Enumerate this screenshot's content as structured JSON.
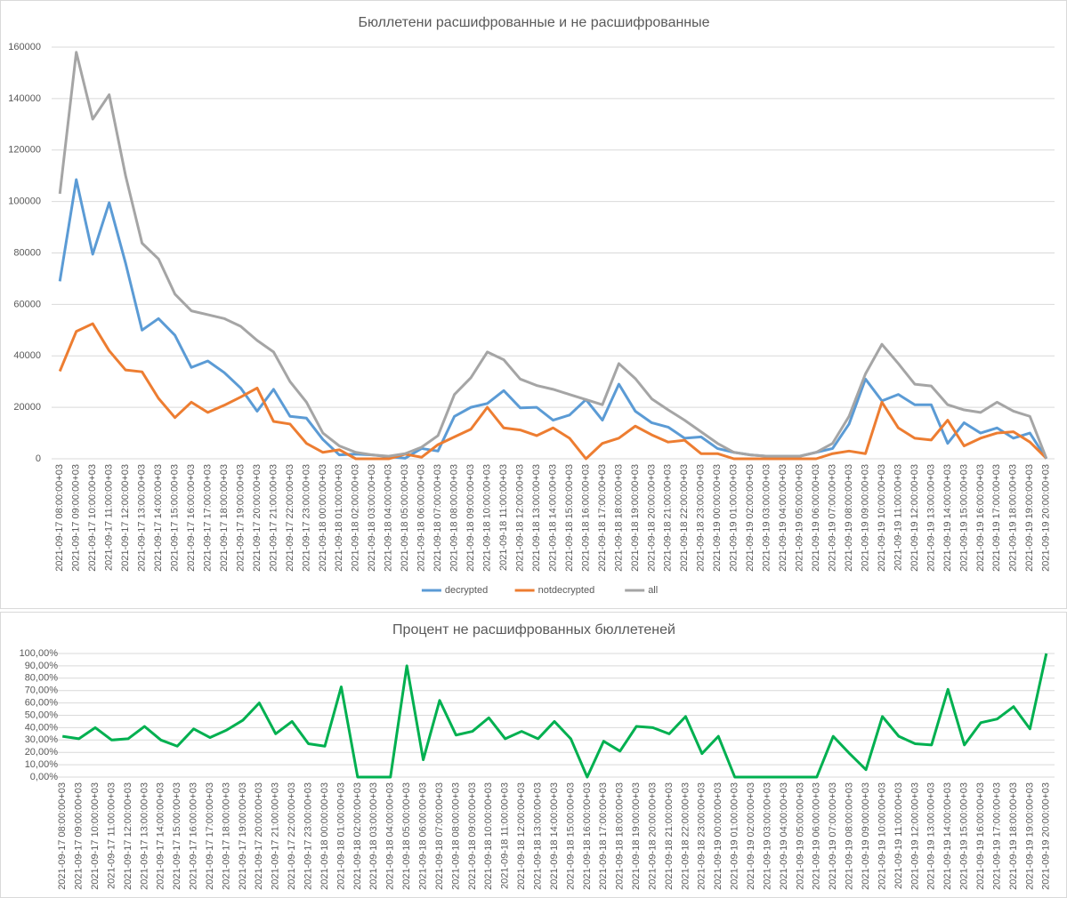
{
  "chart_data": [
    {
      "type": "line",
      "title": "Бюллетени расшифрованные и не расшифрованные",
      "categories": [
        "2021-09-17 08:00:00+03",
        "2021-09-17 09:00:00+03",
        "2021-09-17 10:00:00+03",
        "2021-09-17 11:00:00+03",
        "2021-09-17 12:00:00+03",
        "2021-09-17 13:00:00+03",
        "2021-09-17 14:00:00+03",
        "2021-09-17 15:00:00+03",
        "2021-09-17 16:00:00+03",
        "2021-09-17 17:00:00+03",
        "2021-09-17 18:00:00+03",
        "2021-09-17 19:00:00+03",
        "2021-09-17 20:00:00+03",
        "2021-09-17 21:00:00+03",
        "2021-09-17 22:00:00+03",
        "2021-09-17 23:00:00+03",
        "2021-09-18 00:00:00+03",
        "2021-09-18 01:00:00+03",
        "2021-09-18 02:00:00+03",
        "2021-09-18 03:00:00+03",
        "2021-09-18 04:00:00+03",
        "2021-09-18 05:00:00+03",
        "2021-09-18 06:00:00+03",
        "2021-09-18 07:00:00+03",
        "2021-09-18 08:00:00+03",
        "2021-09-18 09:00:00+03",
        "2021-09-18 10:00:00+03",
        "2021-09-18 11:00:00+03",
        "2021-09-18 12:00:00+03",
        "2021-09-18 13:00:00+03",
        "2021-09-18 14:00:00+03",
        "2021-09-18 15:00:00+03",
        "2021-09-18 16:00:00+03",
        "2021-09-18 17:00:00+03",
        "2021-09-18 18:00:00+03",
        "2021-09-18 19:00:00+03",
        "2021-09-18 20:00:00+03",
        "2021-09-18 21:00:00+03",
        "2021-09-18 22:00:00+03",
        "2021-09-18 23:00:00+03",
        "2021-09-19 00:00:00+03",
        "2021-09-19 01:00:00+03",
        "2021-09-19 02:00:00+03",
        "2021-09-19 03:00:00+03",
        "2021-09-19 04:00:00+03",
        "2021-09-19 05:00:00+03",
        "2021-09-19 06:00:00+03",
        "2021-09-19 07:00:00+03",
        "2021-09-19 08:00:00+03",
        "2021-09-19 09:00:00+03",
        "2021-09-19 10:00:00+03",
        "2021-09-19 11:00:00+03",
        "2021-09-19 12:00:00+03",
        "2021-09-19 13:00:00+03",
        "2021-09-19 14:00:00+03",
        "2021-09-19 15:00:00+03",
        "2021-09-19 16:00:00+03",
        "2021-09-19 17:00:00+03",
        "2021-09-19 18:00:00+03",
        "2021-09-19 19:00:00+03",
        "2021-09-19 20:00:00+03"
      ],
      "series": [
        {
          "name": "decrypted",
          "color": "#5b9bd5",
          "values": [
            69000,
            108500,
            79500,
            99500,
            76000,
            50000,
            54500,
            48000,
            35500,
            38000,
            33500,
            27500,
            18500,
            27000,
            16500,
            15800,
            7500,
            1500,
            1800,
            1500,
            800,
            200,
            4000,
            3000,
            16500,
            20000,
            21500,
            26500,
            19800,
            20000,
            15000,
            17000,
            23000,
            15000,
            29000,
            18500,
            14000,
            12300,
            8000,
            8500,
            4000,
            2500,
            1500,
            1000,
            1000,
            1000,
            2500,
            4000,
            13500,
            31000,
            22500,
            25000,
            21000,
            21000,
            6000,
            14000,
            10000,
            12000,
            8000,
            10000,
            0
          ]
        },
        {
          "name": "notdecrypted",
          "color": "#ed7d31",
          "values": [
            34000,
            49500,
            52500,
            42000,
            34500,
            33800,
            23500,
            16000,
            22000,
            18000,
            20800,
            24000,
            27500,
            14500,
            13500,
            6000,
            2500,
            3500,
            0,
            0,
            0,
            1800,
            600,
            5500,
            8500,
            11500,
            20000,
            12000,
            11200,
            9000,
            12000,
            8000,
            0,
            6000,
            8000,
            12700,
            9300,
            6500,
            7200,
            2000,
            2000,
            0,
            0,
            0,
            0,
            0,
            0,
            2000,
            3000,
            2000,
            22000,
            12000,
            8000,
            7300,
            15000,
            5000,
            8000,
            10000,
            10500,
            6500,
            200
          ]
        },
        {
          "name": "all",
          "color": "#a5a5a5",
          "values": [
            103000,
            158000,
            132000,
            141500,
            110000,
            83800,
            77700,
            64000,
            57500,
            56000,
            54500,
            51500,
            46000,
            41500,
            30000,
            22000,
            10000,
            5000,
            2500,
            1500,
            1000,
            2000,
            4500,
            9000,
            25000,
            31500,
            41500,
            38500,
            31000,
            28500,
            27000,
            25000,
            23000,
            21000,
            37000,
            31200,
            23300,
            19000,
            15000,
            10500,
            6000,
            2500,
            1500,
            1000,
            1000,
            1000,
            2500,
            6000,
            16500,
            33000,
            44500,
            37000,
            29000,
            28300,
            21000,
            19000,
            18000,
            22000,
            18500,
            16500,
            200
          ]
        }
      ],
      "ylim": [
        0,
        160000
      ],
      "yticks": [
        0,
        20000,
        40000,
        60000,
        80000,
        100000,
        120000,
        140000,
        160000
      ],
      "grid": true,
      "legend": "bottom"
    },
    {
      "type": "line",
      "title": "Процент не расшифрованных бюллетеней",
      "categories": [
        "2021-09-17 08:00:00+03",
        "2021-09-17 09:00:00+03",
        "2021-09-17 10:00:00+03",
        "2021-09-17 11:00:00+03",
        "2021-09-17 12:00:00+03",
        "2021-09-17 13:00:00+03",
        "2021-09-17 14:00:00+03",
        "2021-09-17 15:00:00+03",
        "2021-09-17 16:00:00+03",
        "2021-09-17 17:00:00+03",
        "2021-09-17 18:00:00+03",
        "2021-09-17 19:00:00+03",
        "2021-09-17 20:00:00+03",
        "2021-09-17 21:00:00+03",
        "2021-09-17 22:00:00+03",
        "2021-09-17 23:00:00+03",
        "2021-09-18 00:00:00+03",
        "2021-09-18 01:00:00+03",
        "2021-09-18 02:00:00+03",
        "2021-09-18 03:00:00+03",
        "2021-09-18 04:00:00+03",
        "2021-09-18 05:00:00+03",
        "2021-09-18 06:00:00+03",
        "2021-09-18 07:00:00+03",
        "2021-09-18 08:00:00+03",
        "2021-09-18 09:00:00+03",
        "2021-09-18 10:00:00+03",
        "2021-09-18 11:00:00+03",
        "2021-09-18 12:00:00+03",
        "2021-09-18 13:00:00+03",
        "2021-09-18 14:00:00+03",
        "2021-09-18 15:00:00+03",
        "2021-09-18 16:00:00+03",
        "2021-09-18 17:00:00+03",
        "2021-09-18 18:00:00+03",
        "2021-09-18 19:00:00+03",
        "2021-09-18 20:00:00+03",
        "2021-09-18 21:00:00+03",
        "2021-09-18 22:00:00+03",
        "2021-09-18 23:00:00+03",
        "2021-09-19 00:00:00+03",
        "2021-09-19 01:00:00+03",
        "2021-09-19 02:00:00+03",
        "2021-09-19 03:00:00+03",
        "2021-09-19 04:00:00+03",
        "2021-09-19 05:00:00+03",
        "2021-09-19 06:00:00+03",
        "2021-09-19 07:00:00+03",
        "2021-09-19 08:00:00+03",
        "2021-09-19 09:00:00+03",
        "2021-09-19 10:00:00+03",
        "2021-09-19 11:00:00+03",
        "2021-09-19 12:00:00+03",
        "2021-09-19 13:00:00+03",
        "2021-09-19 14:00:00+03",
        "2021-09-19 15:00:00+03",
        "2021-09-19 16:00:00+03",
        "2021-09-19 17:00:00+03",
        "2021-09-19 18:00:00+03",
        "2021-09-19 19:00:00+03",
        "2021-09-19 20:00:00+03"
      ],
      "values": [
        33,
        31,
        40,
        30,
        31,
        41,
        30,
        25,
        39,
        32,
        38,
        46,
        60,
        35,
        45,
        27,
        25,
        73,
        0,
        0,
        0,
        90,
        14,
        62,
        34,
        37,
        48,
        31,
        37,
        31,
        45,
        31,
        0,
        29,
        21,
        41,
        40,
        35,
        49,
        19,
        33,
        0,
        0,
        0,
        0,
        0,
        0,
        33,
        19,
        6,
        49,
        33,
        27,
        26,
        71,
        26,
        44,
        47,
        57,
        39,
        100
      ],
      "color": "#00b050",
      "ylim": [
        0,
        100
      ],
      "yticks": [
        {
          "value": 0,
          "label": "0,00%"
        },
        {
          "value": 10,
          "label": "10,00%"
        },
        {
          "value": 20,
          "label": "20,00%"
        },
        {
          "value": 30,
          "label": "30,00%"
        },
        {
          "value": 40,
          "label": "40,00%"
        },
        {
          "value": 50,
          "label": "50,00%"
        },
        {
          "value": 60,
          "label": "60,00%"
        },
        {
          "value": 70,
          "label": "70,00%"
        },
        {
          "value": 80,
          "label": "80,00%"
        },
        {
          "value": 90,
          "label": "90,00%"
        },
        {
          "value": 100,
          "label": "100,00%"
        }
      ],
      "grid": true
    }
  ]
}
